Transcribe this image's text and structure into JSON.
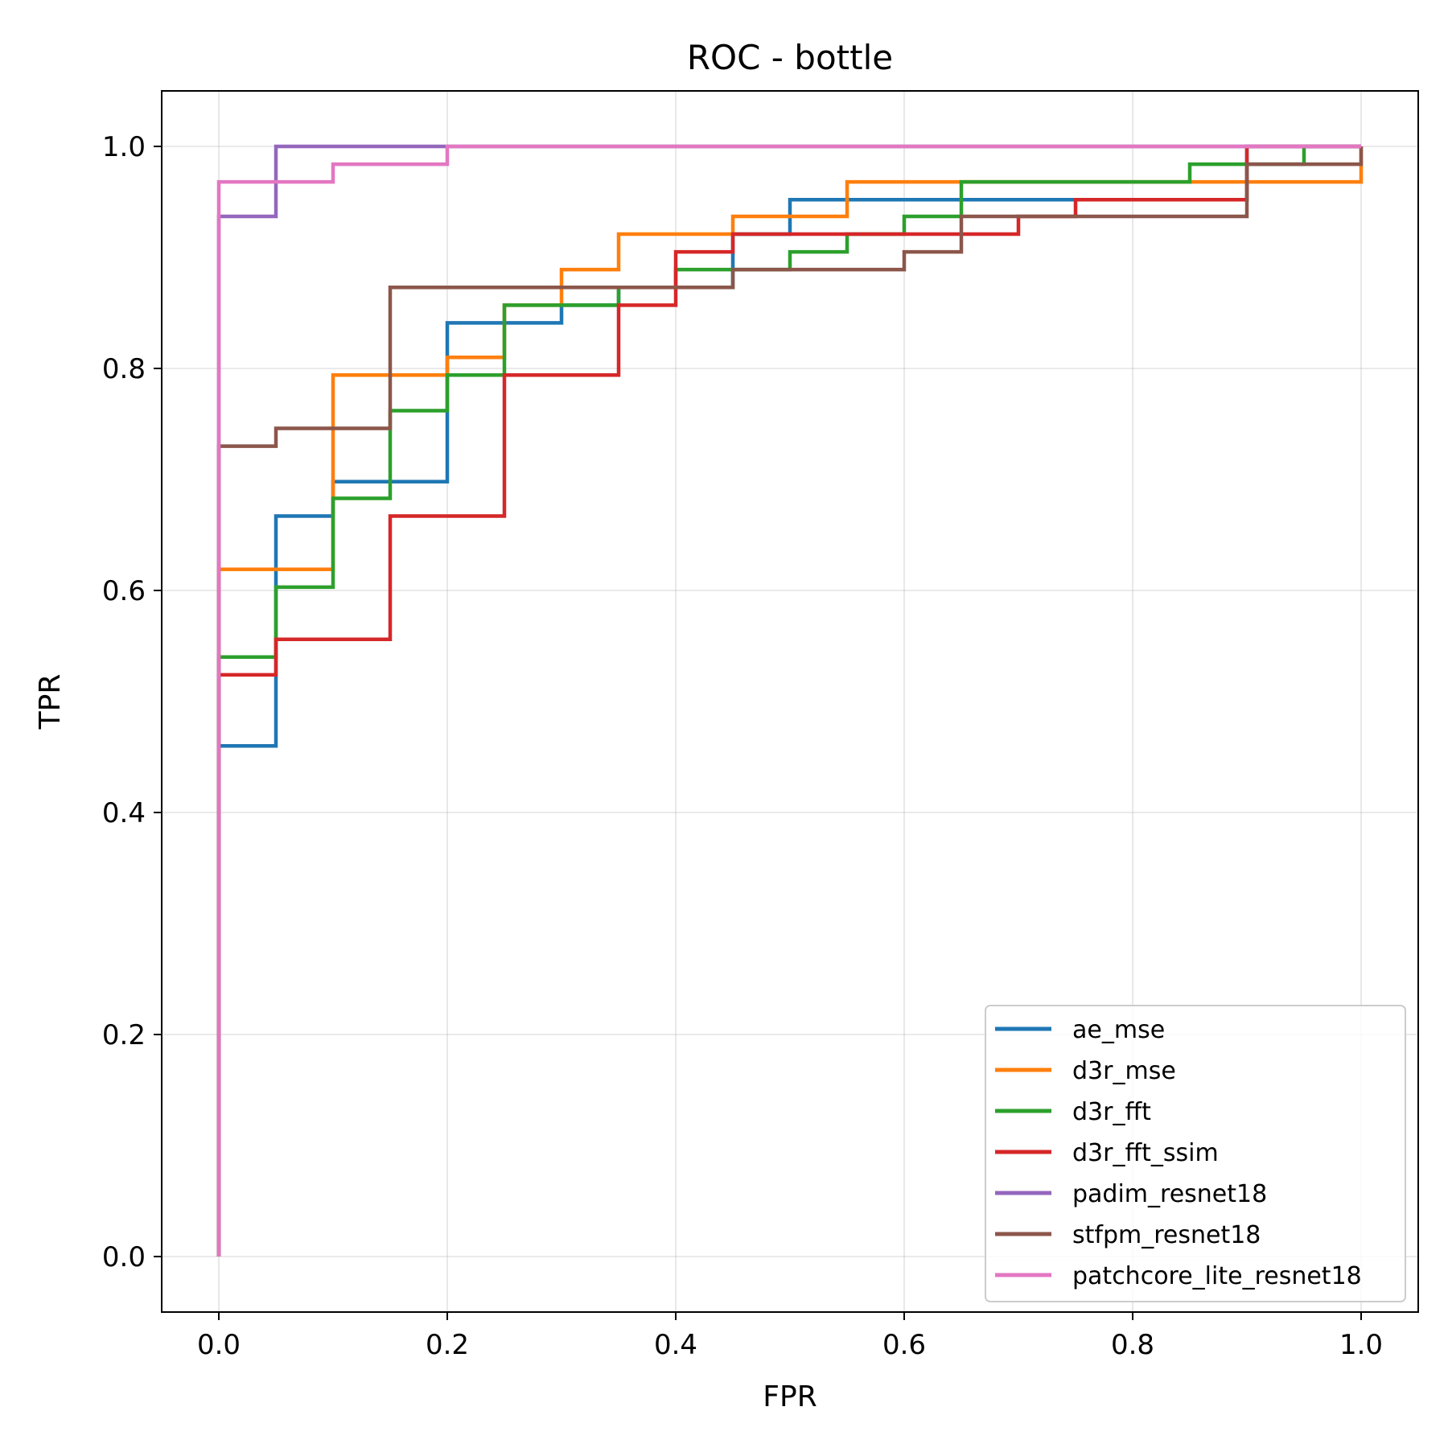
{
  "chart_data": {
    "type": "line",
    "title": "ROC - bottle",
    "xlabel": "FPR",
    "ylabel": "TPR",
    "xlim": [
      -0.05,
      1.05
    ],
    "ylim": [
      -0.05,
      1.05
    ],
    "xticks": [
      0.0,
      0.2,
      0.4,
      0.6,
      0.8,
      1.0
    ],
    "yticks": [
      0.0,
      0.2,
      0.4,
      0.6,
      0.8,
      1.0
    ],
    "xtick_labels": [
      "0.0",
      "0.2",
      "0.4",
      "0.6",
      "0.8",
      "1.0"
    ],
    "ytick_labels": [
      "0.0",
      "0.2",
      "0.4",
      "0.6",
      "0.8",
      "1.0"
    ],
    "grid": true,
    "legend_position": "bottom-right",
    "series": [
      {
        "name": "ae_mse",
        "color": "#1f77b4",
        "x": [
          0,
          0,
          0.05,
          0.05,
          0.1,
          0.1,
          0.2,
          0.2,
          0.3,
          0.3,
          0.35,
          0.35,
          0.45,
          0.45,
          0.5,
          0.5,
          0.75,
          0.75,
          0.9,
          0.9,
          1.0
        ],
        "y": [
          0,
          0.46,
          0.46,
          0.667,
          0.667,
          0.698,
          0.698,
          0.841,
          0.841,
          0.857,
          0.857,
          0.873,
          0.873,
          0.921,
          0.921,
          0.952,
          0.952,
          0.952,
          0.952,
          1.0,
          1.0
        ]
      },
      {
        "name": "d3r_mse",
        "color": "#ff7f0e",
        "x": [
          0,
          0,
          0.1,
          0.1,
          0.2,
          0.2,
          0.25,
          0.25,
          0.3,
          0.3,
          0.35,
          0.35,
          0.45,
          0.45,
          0.55,
          0.55,
          0.85,
          0.85,
          1.0,
          1.0
        ],
        "y": [
          0,
          0.619,
          0.619,
          0.794,
          0.794,
          0.81,
          0.81,
          0.857,
          0.857,
          0.889,
          0.889,
          0.921,
          0.921,
          0.937,
          0.937,
          0.968,
          0.968,
          0.968,
          0.968,
          1.0
        ]
      },
      {
        "name": "d3r_fft",
        "color": "#2ca02c",
        "x": [
          0,
          0,
          0.05,
          0.05,
          0.1,
          0.1,
          0.15,
          0.15,
          0.2,
          0.2,
          0.25,
          0.25,
          0.35,
          0.35,
          0.4,
          0.4,
          0.45,
          0.45,
          0.5,
          0.5,
          0.55,
          0.55,
          0.6,
          0.6,
          0.65,
          0.65,
          0.85,
          0.85,
          0.95,
          0.95,
          1.0
        ],
        "y": [
          0,
          0.54,
          0.54,
          0.603,
          0.603,
          0.683,
          0.683,
          0.762,
          0.762,
          0.794,
          0.794,
          0.857,
          0.857,
          0.873,
          0.873,
          0.889,
          0.889,
          0.889,
          0.889,
          0.905,
          0.905,
          0.921,
          0.921,
          0.937,
          0.937,
          0.968,
          0.968,
          0.984,
          0.984,
          1.0,
          1.0
        ]
      },
      {
        "name": "d3r_fft_ssim",
        "color": "#d62728",
        "x": [
          0,
          0,
          0.05,
          0.05,
          0.15,
          0.15,
          0.25,
          0.25,
          0.35,
          0.35,
          0.4,
          0.4,
          0.45,
          0.45,
          0.7,
          0.7,
          0.75,
          0.75,
          0.9,
          0.9,
          1.0
        ],
        "y": [
          0,
          0.524,
          0.524,
          0.556,
          0.556,
          0.667,
          0.667,
          0.794,
          0.794,
          0.857,
          0.857,
          0.905,
          0.905,
          0.921,
          0.921,
          0.937,
          0.937,
          0.952,
          0.952,
          1.0,
          1.0
        ]
      },
      {
        "name": "padim_resnet18",
        "color": "#9467bd",
        "x": [
          0,
          0,
          0.05,
          0.05,
          1.0
        ],
        "y": [
          0,
          0.937,
          0.937,
          1.0,
          1.0
        ]
      },
      {
        "name": "stfpm_resnet18",
        "color": "#8c564b",
        "x": [
          0,
          0,
          0.05,
          0.05,
          0.15,
          0.15,
          0.45,
          0.45,
          0.6,
          0.6,
          0.65,
          0.65,
          0.9,
          0.9,
          1.0,
          1.0
        ],
        "y": [
          0,
          0.73,
          0.73,
          0.746,
          0.746,
          0.873,
          0.873,
          0.889,
          0.889,
          0.905,
          0.905,
          0.937,
          0.937,
          0.984,
          0.984,
          1.0
        ]
      },
      {
        "name": "patchcore_lite_resnet18",
        "color": "#e377c2",
        "x": [
          0,
          0,
          0.1,
          0.1,
          0.2,
          0.2,
          1.0
        ],
        "y": [
          0,
          0.968,
          0.968,
          0.984,
          0.984,
          1.0,
          1.0
        ]
      }
    ]
  }
}
